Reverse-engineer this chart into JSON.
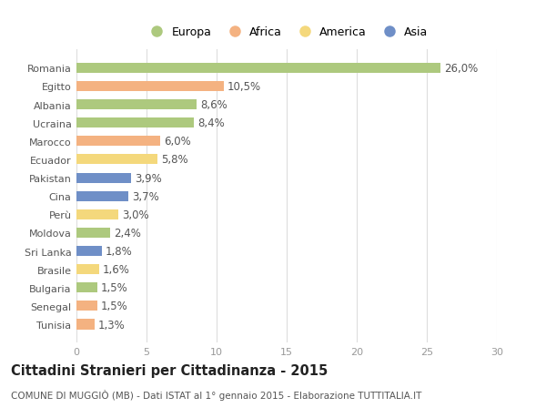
{
  "countries": [
    "Romania",
    "Egitto",
    "Albania",
    "Ucraina",
    "Marocco",
    "Ecuador",
    "Pakistan",
    "Cina",
    "Perù",
    "Moldova",
    "Sri Lanka",
    "Brasile",
    "Bulgaria",
    "Senegal",
    "Tunisia"
  ],
  "values": [
    26.0,
    10.5,
    8.6,
    8.4,
    6.0,
    5.8,
    3.9,
    3.7,
    3.0,
    2.4,
    1.8,
    1.6,
    1.5,
    1.5,
    1.3
  ],
  "continents": [
    "Europa",
    "Africa",
    "Europa",
    "Europa",
    "Africa",
    "America",
    "Asia",
    "Asia",
    "America",
    "Europa",
    "Asia",
    "America",
    "Europa",
    "Africa",
    "Africa"
  ],
  "colors": {
    "Europa": "#adc97e",
    "Africa": "#f4b281",
    "America": "#f4d87c",
    "Asia": "#6f8fc7"
  },
  "legend_order": [
    "Europa",
    "Africa",
    "America",
    "Asia"
  ],
  "xlim": [
    0,
    30
  ],
  "xticks": [
    0,
    5,
    10,
    15,
    20,
    25,
    30
  ],
  "title": "Cittadini Stranieri per Cittadinanza - 2015",
  "subtitle": "COMUNE DI MUGGIÒ (MB) - Dati ISTAT al 1° gennaio 2015 - Elaborazione TUTTITALIA.IT",
  "title_fontsize": 10.5,
  "subtitle_fontsize": 7.5,
  "label_fontsize": 8.5,
  "tick_fontsize": 8,
  "bar_height": 0.55,
  "background_color": "#ffffff",
  "grid_color": "#dddddd",
  "text_color": "#555555",
  "xlabel_color": "#999999"
}
